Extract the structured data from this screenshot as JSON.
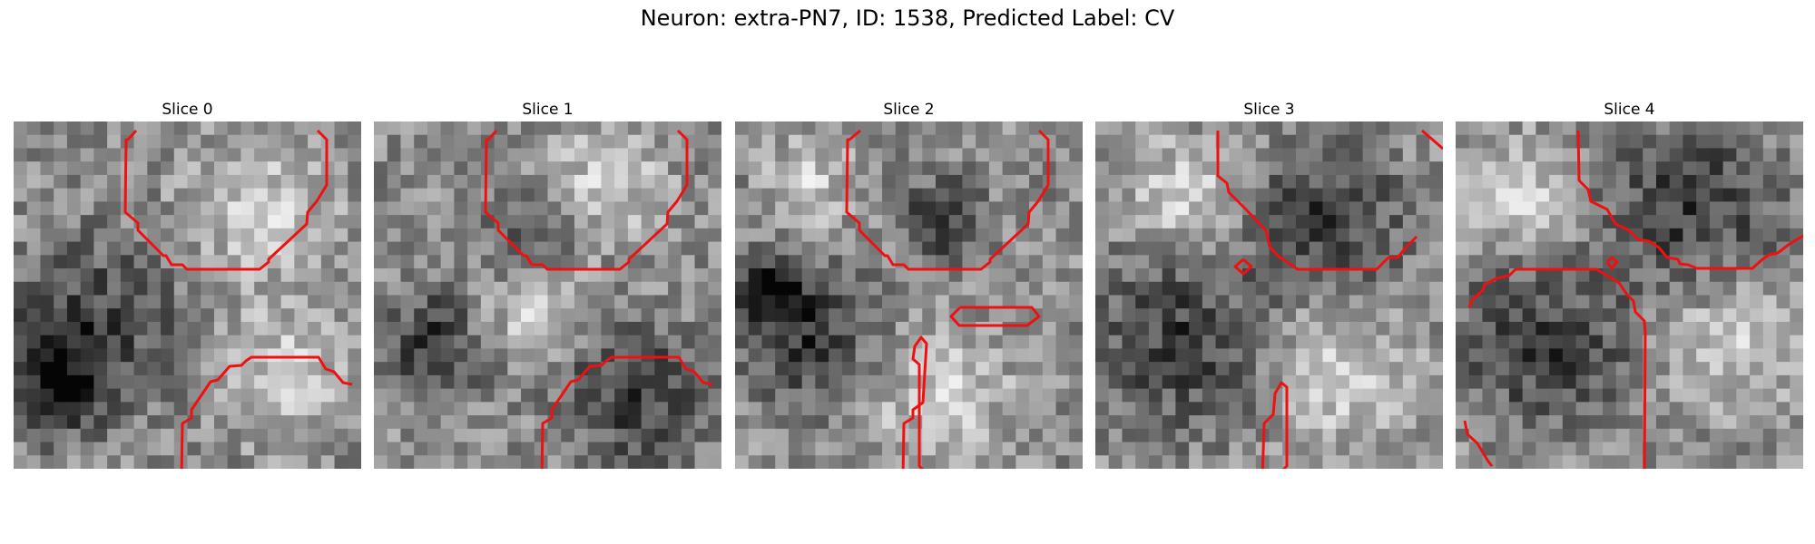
{
  "figure": {
    "title": "Neuron: extra-PN7, ID: 1538, Predicted Label: CV"
  },
  "panels": [
    {
      "title": "Slice 0"
    },
    {
      "title": "Slice 1"
    },
    {
      "title": "Slice 2"
    },
    {
      "title": "Slice 3"
    },
    {
      "title": "Slice 4"
    }
  ],
  "colors": {
    "contour": "#ee1111",
    "background": "#ffffff"
  }
}
